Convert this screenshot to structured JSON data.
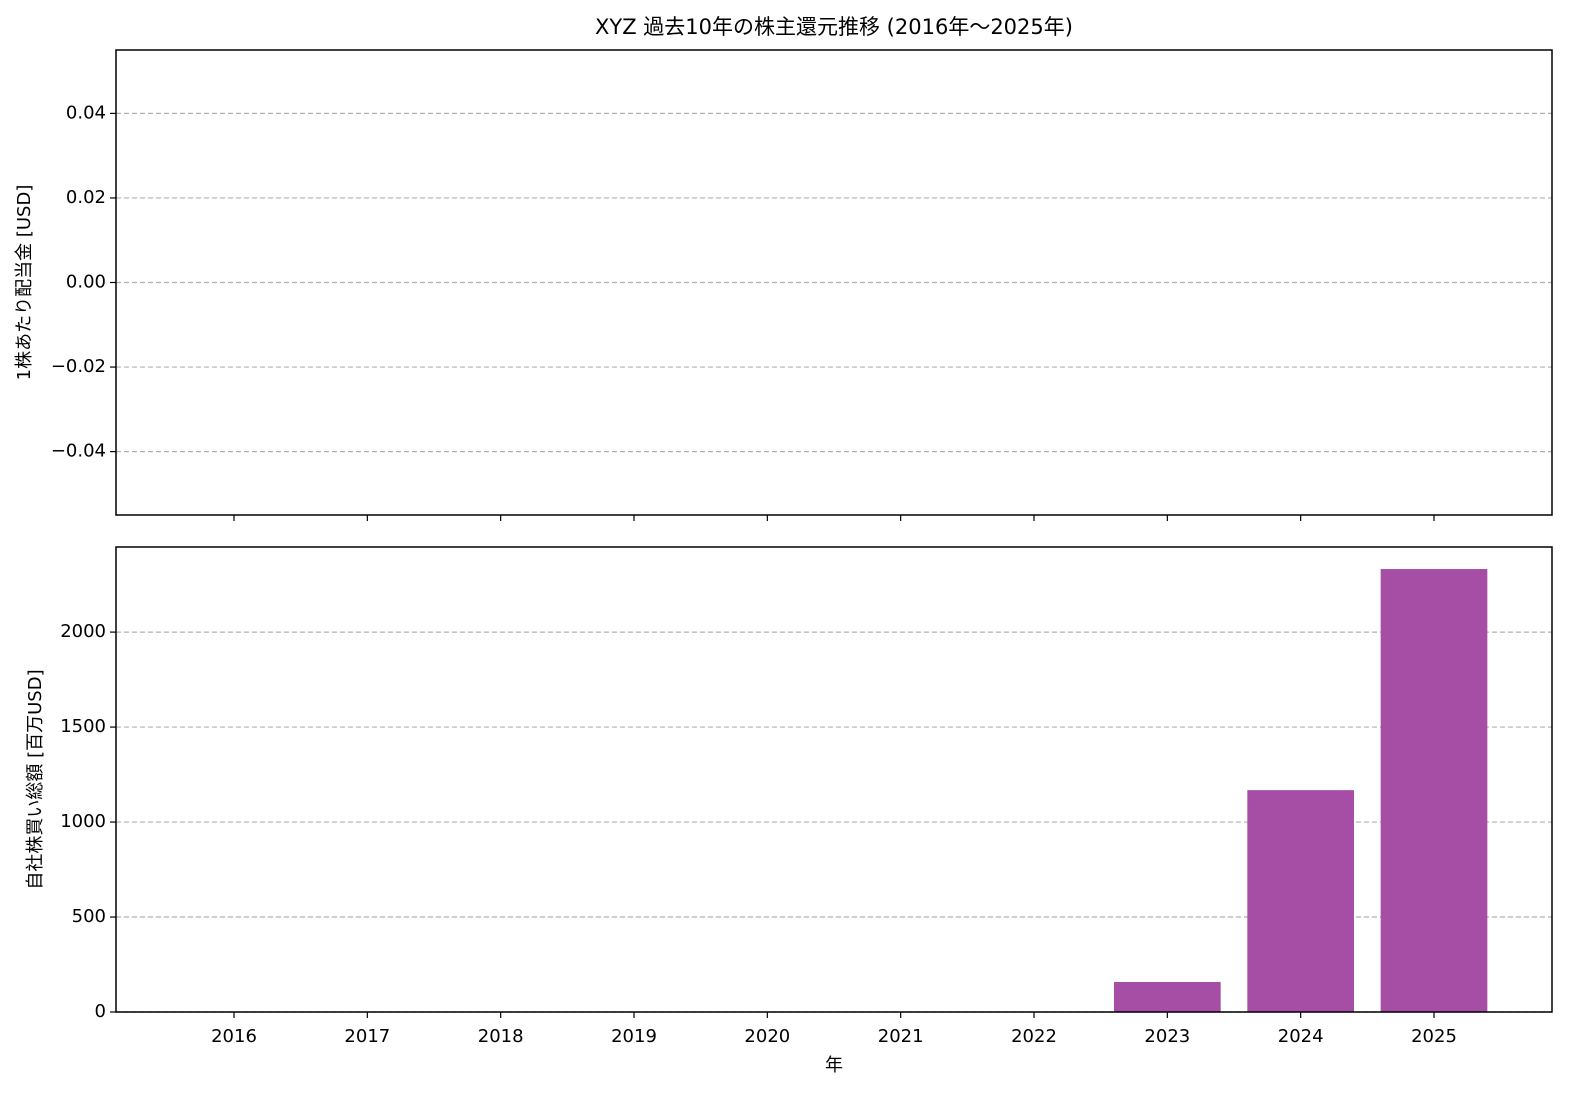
{
  "chart_data": [
    {
      "type": "bar",
      "title": "XYZ 過去10年の株主還元推移 (2016年～2025年)",
      "ylabel": "1株あたり配当金 [USD]",
      "values": [
        null,
        null,
        null,
        null,
        null,
        null,
        null,
        null,
        null,
        null
      ],
      "ylim": [
        -0.055,
        0.055
      ],
      "yticks": [
        {
          "value": -0.04,
          "label": "−0.04"
        },
        {
          "value": -0.02,
          "label": "−0.02"
        },
        {
          "value": 0,
          "label": "0.00"
        },
        {
          "value": 0.02,
          "label": "0.02"
        },
        {
          "value": 0.04,
          "label": "0.04"
        }
      ],
      "grid": true,
      "color": "#a64da6"
    },
    {
      "type": "bar",
      "ylabel": "自社株買い総額 [百万USD]",
      "xlabel": "年",
      "categories": [
        "2016",
        "2017",
        "2018",
        "2019",
        "2020",
        "2021",
        "2022",
        "2023",
        "2024",
        "2025"
      ],
      "values": [
        0,
        0,
        0,
        0,
        0,
        0,
        0,
        158,
        1168,
        2332
      ],
      "ylim": [
        0,
        2448
      ],
      "yticks": [
        0,
        500,
        1000,
        1500,
        2000
      ],
      "grid": true,
      "color": "#a64da6"
    }
  ]
}
